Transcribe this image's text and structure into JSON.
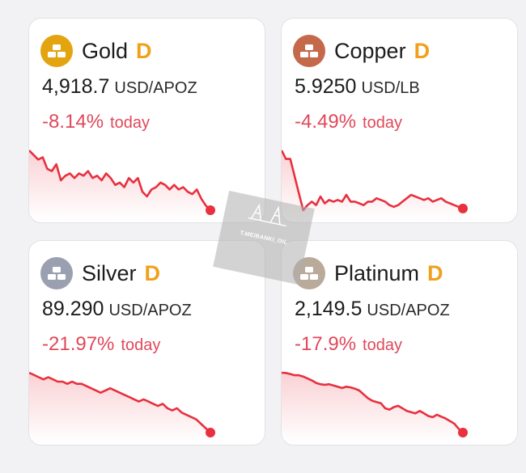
{
  "cards": [
    {
      "name": "Gold",
      "badge": "D",
      "price": "4,918.7",
      "unit": "USD/APOZ",
      "change": "-8.14%",
      "change_word": "today",
      "icon": "gold-bars-icon",
      "icon_bg": "#e3a410",
      "spark": [
        82,
        80,
        78,
        79,
        74,
        73,
        76,
        69,
        71,
        72,
        70,
        72,
        71,
        73,
        70,
        71,
        69,
        72,
        70,
        67,
        68,
        66,
        70,
        68,
        70,
        64,
        62,
        65,
        66,
        68,
        67,
        65,
        67,
        65,
        66,
        64,
        63,
        65,
        61,
        58,
        56
      ]
    },
    {
      "name": "Copper",
      "badge": "D",
      "price": "5.9250",
      "unit": "USD/LB",
      "change": "-4.49%",
      "change_word": "today",
      "icon": "copper-bars-icon",
      "icon_bg": "#c4694a",
      "spark": [
        6.2,
        6.15,
        6.15,
        6.05,
        5.95,
        5.85,
        5.88,
        5.9,
        5.88,
        5.93,
        5.89,
        5.91,
        5.9,
        5.91,
        5.9,
        5.94,
        5.9,
        5.9,
        5.89,
        5.88,
        5.9,
        5.9,
        5.92,
        5.91,
        5.9,
        5.88,
        5.87,
        5.88,
        5.9,
        5.92,
        5.94,
        5.93,
        5.92,
        5.91,
        5.92,
        5.9,
        5.91,
        5.92,
        5.9,
        5.89,
        5.88,
        5.87,
        5.86
      ]
    },
    {
      "name": "Silver",
      "badge": "D",
      "price": "89.290",
      "unit": "USD/APOZ",
      "change": "-21.97%",
      "change_word": "today",
      "icon": "silver-bars-icon",
      "icon_bg": "#9aa0b0",
      "spark": [
        115,
        114,
        113,
        112,
        113,
        112,
        111,
        111,
        110,
        111,
        110,
        110,
        109,
        108,
        107,
        106,
        107,
        108,
        107,
        106,
        105,
        104,
        103,
        102,
        103,
        102,
        101,
        100,
        101,
        99,
        98,
        99,
        97,
        96,
        95,
        94,
        92,
        90,
        88
      ]
    },
    {
      "name": "Platinum",
      "badge": "D",
      "price": "2,149.5",
      "unit": "USD/APOZ",
      "change": "-17.9%",
      "change_word": "today",
      "icon": "platinum-bars-icon",
      "icon_bg": "#b9aa9a",
      "spark": [
        2620,
        2618,
        2610,
        2600,
        2600,
        2590,
        2575,
        2560,
        2540,
        2530,
        2525,
        2530,
        2520,
        2510,
        2500,
        2510,
        2505,
        2495,
        2480,
        2450,
        2420,
        2400,
        2390,
        2380,
        2340,
        2330,
        2350,
        2360,
        2340,
        2320,
        2310,
        2300,
        2320,
        2300,
        2280,
        2270,
        2290,
        2275,
        2260,
        2240,
        2220,
        2180,
        2149.5
      ]
    }
  ],
  "watermark": {
    "text": "T.ME/BANKI_OIL"
  },
  "colors": {
    "line": "#e8303e",
    "up_text": "#e0485a",
    "badge": "#f0a11a"
  }
}
